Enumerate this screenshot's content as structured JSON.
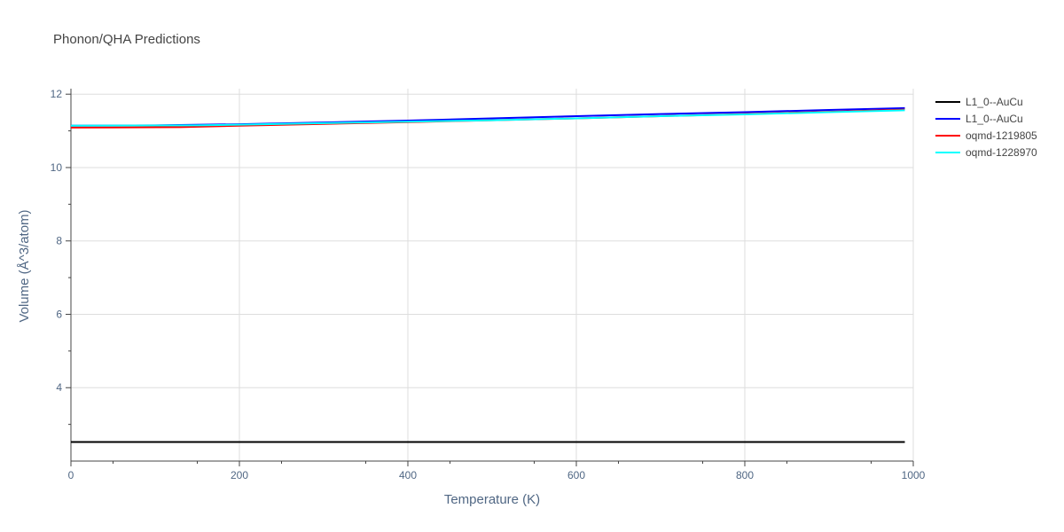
{
  "chart_data": {
    "type": "line",
    "title": "Phonon/QHA Predictions",
    "xlabel": "Temperature (K)",
    "ylabel": "Volume (Å^3/atom)",
    "xlim": [
      0,
      1000
    ],
    "ylim": [
      2.0,
      12.15
    ],
    "xticks": [
      0,
      200,
      400,
      600,
      800,
      1000
    ],
    "yticks": [
      4,
      6,
      8,
      10,
      12
    ],
    "grid": true,
    "legend": "right",
    "series": [
      {
        "name": "L1_0--AuCu",
        "color": "#000000",
        "x": [
          0,
          990
        ],
        "y": [
          2.52,
          2.52
        ]
      },
      {
        "name": "L1_0--AuCu",
        "color": "#0000ff",
        "x": [
          0,
          100,
          200,
          300,
          400,
          500,
          600,
          700,
          800,
          900,
          990
        ],
        "y": [
          11.14,
          11.15,
          11.18,
          11.23,
          11.28,
          11.34,
          11.4,
          11.46,
          11.51,
          11.57,
          11.62
        ]
      },
      {
        "name": "oqmd-1219805",
        "color": "#ff0000",
        "x": [
          0,
          130,
          200,
          300,
          400,
          500,
          600,
          700,
          800,
          900,
          990
        ],
        "y": [
          11.09,
          11.1,
          11.14,
          11.19,
          11.24,
          11.29,
          11.34,
          11.4,
          11.46,
          11.52,
          11.58
        ]
      },
      {
        "name": "oqmd-1228970",
        "color": "#00ffff",
        "x": [
          0,
          150,
          200,
          300,
          400,
          500,
          600,
          700,
          800,
          900,
          990
        ],
        "y": [
          11.14,
          11.15,
          11.17,
          11.21,
          11.25,
          11.29,
          11.34,
          11.4,
          11.45,
          11.51,
          11.56
        ]
      }
    ]
  }
}
